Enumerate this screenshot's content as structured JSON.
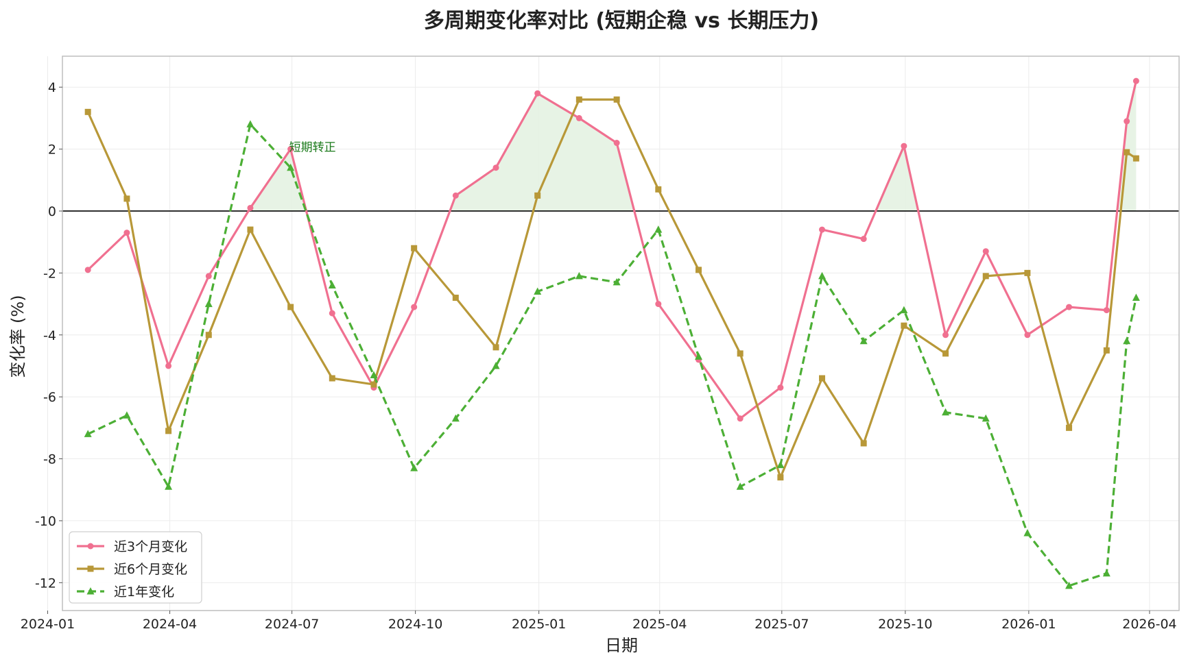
{
  "chart_data": {
    "type": "line",
    "title": "多周期变化率对比 (短期企稳 vs 长期压力)",
    "xlabel": "日期",
    "ylabel": "变化率 (%)",
    "ylim": [
      -12.9,
      5.0
    ],
    "xlim": [
      "2024-01-12",
      "2026-04-23"
    ],
    "yticks": [
      4,
      2,
      0,
      -2,
      -4,
      -6,
      -8,
      -10,
      -12
    ],
    "ytick_labels": [
      "4",
      "2",
      "0",
      "-2",
      "-4",
      "-6",
      "-8",
      "-10",
      "-12"
    ],
    "xticks": [
      "2024-01-01",
      "2024-04-01",
      "2024-07-01",
      "2024-10-01",
      "2025-01-01",
      "2025-04-01",
      "2025-07-01",
      "2025-10-01",
      "2026-01-01",
      "2026-04-01"
    ],
    "xtick_labels": [
      "2024-01",
      "2024-04",
      "2024-07",
      "2024-10",
      "2025-01",
      "2025-04",
      "2025-07",
      "2025-10",
      "2026-01",
      "2026-04"
    ],
    "grid": true,
    "legend_position": "lower-left",
    "zero_line": true,
    "x": [
      "2024-01-31",
      "2024-02-29",
      "2024-03-31",
      "2024-04-30",
      "2024-05-31",
      "2024-06-30",
      "2024-07-31",
      "2024-08-31",
      "2024-09-30",
      "2024-10-31",
      "2024-11-30",
      "2024-12-31",
      "2025-01-31",
      "2025-02-28",
      "2025-03-31",
      "2025-04-30",
      "2025-05-31",
      "2025-06-30",
      "2025-07-31",
      "2025-08-31",
      "2025-09-30",
      "2025-10-31",
      "2025-11-30",
      "2025-12-31",
      "2026-01-31",
      "2026-02-28",
      "2026-03-15",
      "2026-03-22"
    ],
    "series": [
      {
        "name": "近3个月变化",
        "color": "#f07090",
        "marker": "circle",
        "dash": "solid",
        "values": [
          -1.9,
          -0.7,
          -5.0,
          -2.1,
          0.1,
          2.0,
          -3.3,
          -5.7,
          -3.1,
          0.5,
          1.4,
          3.8,
          3.0,
          2.2,
          -3.0,
          -4.8,
          -6.7,
          -5.7,
          -0.6,
          -0.9,
          2.1,
          -4.0,
          -1.3,
          -4.0,
          -3.1,
          -3.2,
          2.9,
          4.2
        ]
      },
      {
        "name": "近6个月变化",
        "color": "#b89838",
        "marker": "square",
        "dash": "solid",
        "values": [
          3.2,
          0.4,
          -7.1,
          -4.0,
          -0.6,
          -3.1,
          -5.4,
          -5.6,
          -1.2,
          -2.8,
          -4.4,
          0.5,
          3.6,
          3.6,
          0.7,
          -1.9,
          -4.6,
          -8.6,
          -5.4,
          -7.5,
          -3.7,
          -4.6,
          -2.1,
          -2.0,
          -7.0,
          -4.5,
          1.9,
          1.7
        ]
      },
      {
        "name": "近1年变化",
        "color": "#4caf35",
        "marker": "triangle",
        "dash": "dashed",
        "values": [
          -7.2,
          -6.6,
          -8.9,
          -3.0,
          2.8,
          1.4,
          -2.4,
          -5.3,
          -8.3,
          -6.7,
          -5.0,
          -2.6,
          -2.1,
          -2.3,
          -0.6,
          -4.7,
          -8.9,
          -8.2,
          -2.1,
          -4.2,
          -3.2,
          -6.5,
          -6.7,
          -10.4,
          -12.1,
          -11.7,
          -4.2,
          -2.8
        ]
      }
    ],
    "fill_between": {
      "series": "近3个月变化",
      "condition": "> 0",
      "color": "#e4f2e2"
    },
    "annotations": [
      {
        "text": "短期转正",
        "x": "2024-06-30",
        "y": 2.0,
        "color": "#1a7a1a"
      }
    ]
  }
}
